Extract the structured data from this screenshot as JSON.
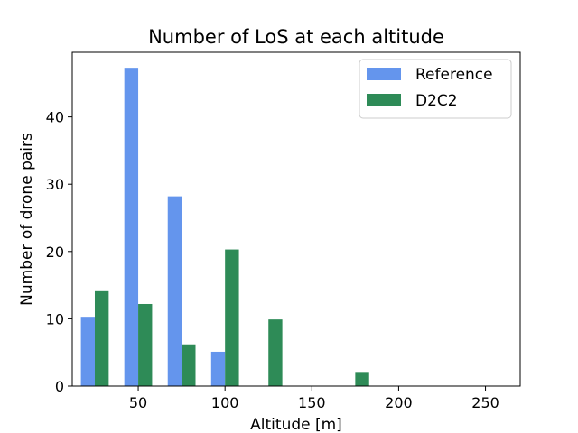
{
  "chart_data": {
    "type": "bar",
    "title": "Number of LoS at each altitude",
    "xlabel": "Altitude [m]",
    "ylabel": "Number of drone pairs",
    "xlim": [
      12,
      270
    ],
    "ylim": [
      0,
      49.6
    ],
    "xticks": [
      50,
      100,
      150,
      200,
      250
    ],
    "yticks": [
      0,
      10,
      20,
      30,
      40
    ],
    "legend_position": "top-right",
    "grid": false,
    "series": [
      {
        "name": "Reference",
        "color": "#6495ED",
        "x": [
          25,
          50,
          75,
          100
        ],
        "values": [
          10.3,
          47.3,
          28.2,
          5.1
        ]
      },
      {
        "name": "D2C2",
        "color": "#2E8B57",
        "x": [
          25,
          50,
          75,
          100,
          125,
          175
        ],
        "values": [
          14.1,
          12.2,
          6.2,
          20.3,
          9.9,
          2.1
        ]
      }
    ]
  }
}
